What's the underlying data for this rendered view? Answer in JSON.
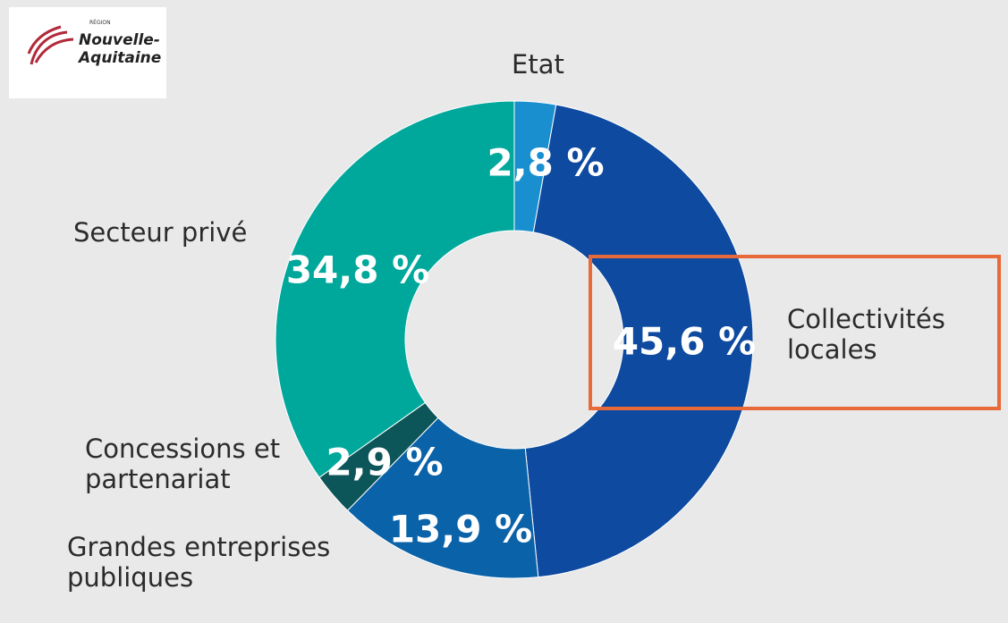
{
  "logo": {
    "small": "RÉGION",
    "lines": [
      "Nouvelle-",
      "Aquitaine"
    ]
  },
  "chart_data": {
    "type": "donut",
    "categories": [
      "Etat",
      "Collectivités locales",
      "Grandes entreprises publiques",
      "Concessions et partenariat",
      "Secteur privé"
    ],
    "values": [
      2.8,
      45.6,
      13.9,
      2.9,
      34.8
    ],
    "value_labels": [
      "2,8 %",
      "45,6 %",
      "13,9 %",
      "2,9 %",
      "34,8 %"
    ],
    "colors": [
      "#1a8fd0",
      "#0d4aa0",
      "#0a62a9",
      "#0c5558",
      "#00a89c"
    ]
  }
}
